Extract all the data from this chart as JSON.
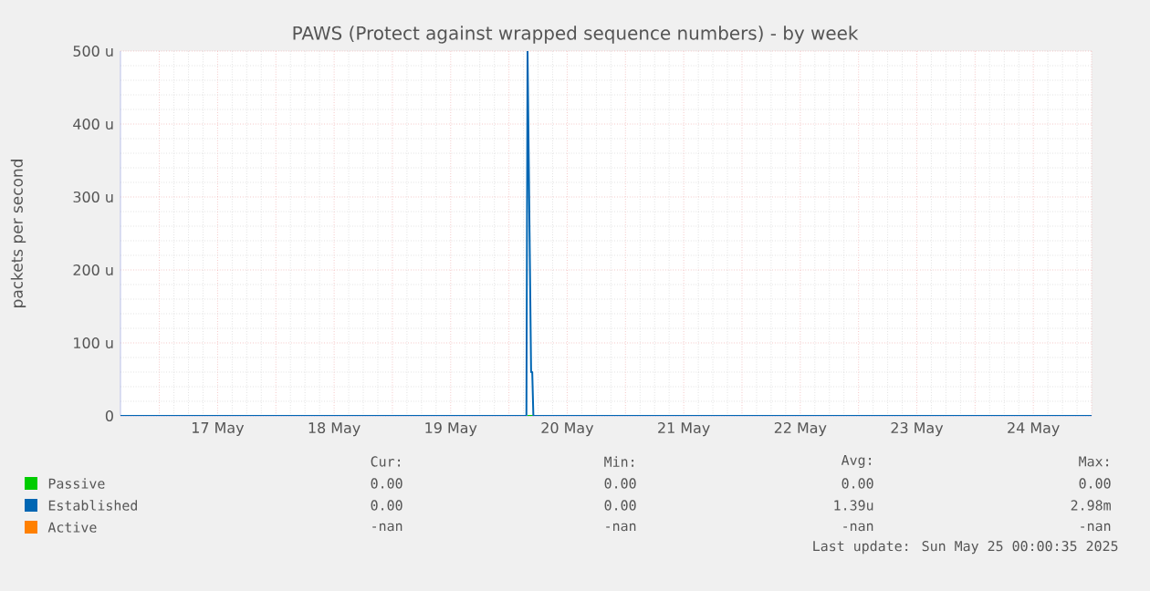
{
  "chart_data": {
    "type": "line",
    "title": "PAWS (Protect against wrapped sequence numbers) - by week",
    "ylabel": "packets per second",
    "xlim": [
      "2025-05-16T16:00",
      "2025-05-25T00:00"
    ],
    "xticks": [
      {
        "value": "2025-05-17T00:00",
        "label": null
      },
      {
        "value": "2025-05-17T12:00",
        "label": "17 May"
      },
      {
        "value": "2025-05-18T00:00",
        "label": null
      },
      {
        "value": "2025-05-18T12:00",
        "label": "18 May"
      },
      {
        "value": "2025-05-19T00:00",
        "label": null
      },
      {
        "value": "2025-05-19T12:00",
        "label": "19 May"
      },
      {
        "value": "2025-05-20T00:00",
        "label": null
      },
      {
        "value": "2025-05-20T12:00",
        "label": "20 May"
      },
      {
        "value": "2025-05-21T00:00",
        "label": null
      },
      {
        "value": "2025-05-21T12:00",
        "label": "21 May"
      },
      {
        "value": "2025-05-22T00:00",
        "label": null
      },
      {
        "value": "2025-05-22T12:00",
        "label": "22 May"
      },
      {
        "value": "2025-05-23T00:00",
        "label": null
      },
      {
        "value": "2025-05-23T12:00",
        "label": "23 May"
      },
      {
        "value": "2025-05-24T00:00",
        "label": null
      },
      {
        "value": "2025-05-24T12:00",
        "label": "24 May"
      },
      {
        "value": "2025-05-25T00:00",
        "label": null
      }
    ],
    "ylim": [
      0,
      500
    ],
    "yticks": [
      {
        "value": 0,
        "label": "0"
      },
      {
        "value": 100,
        "label": "100 u"
      },
      {
        "value": 200,
        "label": "200 u"
      },
      {
        "value": 300,
        "label": "300 u"
      },
      {
        "value": 400,
        "label": "400 u"
      },
      {
        "value": 500,
        "label": "500 u"
      }
    ],
    "grid": true,
    "legend": "bottom",
    "marker": "none",
    "series": [
      {
        "name": "Passive",
        "color": "#00cc00",
        "x": [
          "2025-05-20T03:50",
          "2025-05-20T05:00"
        ],
        "values": [
          0,
          0
        ]
      },
      {
        "name": "Established",
        "color": "#0066b3",
        "x": [
          "2025-05-16T16:00",
          "2025-05-20T03:36",
          "2025-05-20T03:50",
          "2025-05-20T04:34",
          "2025-05-20T04:48",
          "2025-05-20T05:02",
          "2025-05-25T00:00"
        ],
        "values": [
          0,
          0,
          500,
          60,
          60,
          0,
          0
        ]
      },
      {
        "name": "Active",
        "color": "#ff8000"
      }
    ],
    "annotations": [
      "Cur:",
      "Min:",
      "Avg:",
      "Max:",
      "0.00",
      "0.00",
      "0.00",
      "0.00",
      "0.00",
      "0.00",
      "1.39u",
      "2.98m",
      "-nan",
      "-nan",
      "-nan",
      "-nan",
      "Last update: Sun May 25 00:00:35 2025"
    ]
  }
}
